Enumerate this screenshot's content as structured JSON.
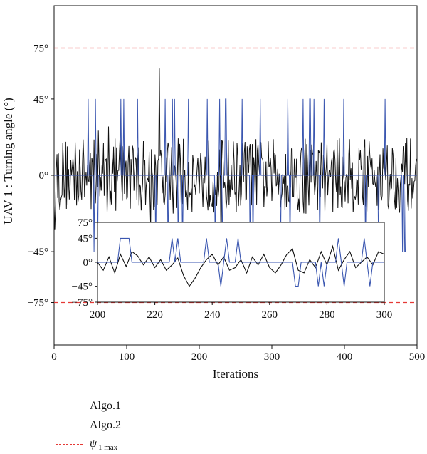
{
  "chart_data": [
    {
      "type": "line",
      "ylabel": "UAV 1 : Turning angle (°)",
      "xlabel": "Iterations",
      "xlim": [
        0,
        500
      ],
      "ylim": [
        -100,
        100
      ],
      "xticks": [
        0,
        100,
        200,
        300,
        400,
        500
      ],
      "yticks": [
        -75,
        -45,
        0,
        45,
        75
      ],
      "ytick_labels": [
        "−75°",
        "−45°",
        "0°",
        "45°",
        "75°"
      ],
      "reference_lines": {
        "name": "ψ1 max",
        "values": [
          75,
          -75
        ],
        "color": "#e53935",
        "style": "dashed"
      },
      "series": [
        {
          "name": "Algo.1",
          "color": "#111111",
          "style": "solid",
          "description": "noisy signal mostly within ±25°, peak ~63° near iteration 145, trough ~-48° near iteration 230"
        },
        {
          "name": "Algo.2",
          "color": "#3a56b0",
          "style": "solid",
          "description": "mostly 0° with intermittent spikes to +45° and -45°"
        }
      ]
    },
    {
      "type": "line",
      "inset": true,
      "xlim": [
        200,
        300
      ],
      "ylim": [
        -75,
        75
      ],
      "xticks": [
        200,
        220,
        240,
        260,
        280,
        300
      ],
      "yticks": [
        -75,
        -45,
        0,
        45,
        75
      ],
      "ytick_labels": [
        "−75°",
        "−45°",
        "0°",
        "45°",
        "75°"
      ],
      "series": [
        {
          "name": "Algo.1",
          "color": "#111111",
          "x": [
            200,
            202,
            204,
            206,
            208,
            210,
            212,
            214,
            216,
            218,
            220,
            222,
            224,
            226,
            228,
            230,
            232,
            234,
            236,
            238,
            240,
            242,
            244,
            246,
            248,
            250,
            252,
            254,
            256,
            258,
            260,
            262,
            264,
            266,
            268,
            270,
            272,
            274,
            276,
            278,
            280,
            282,
            284,
            286,
            288,
            290,
            292,
            294,
            296,
            298,
            300
          ],
          "y": [
            0,
            -15,
            10,
            -20,
            15,
            -8,
            20,
            12,
            -5,
            10,
            -10,
            5,
            -15,
            -5,
            8,
            -25,
            -45,
            -30,
            -10,
            5,
            15,
            -5,
            10,
            -15,
            -10,
            5,
            -20,
            10,
            -5,
            15,
            -10,
            -20,
            -5,
            15,
            25,
            -15,
            -20,
            5,
            -10,
            20,
            -5,
            30,
            -15,
            5,
            20,
            -10,
            0,
            10,
            -5,
            20,
            15
          ]
        },
        {
          "name": "Algo.2",
          "color": "#3a56b0",
          "x": [
            200,
            207,
            208,
            210,
            211,
            212,
            225,
            226,
            227,
            228,
            229,
            233,
            234,
            237,
            238,
            239,
            242,
            243,
            244,
            245,
            246,
            248,
            249,
            250,
            268,
            269,
            270,
            271,
            272,
            276,
            277,
            278,
            279,
            280,
            283,
            284,
            285,
            286,
            287,
            292,
            293,
            294,
            295,
            296,
            300
          ],
          "y": [
            0,
            0,
            45,
            45,
            45,
            0,
            0,
            45,
            0,
            45,
            0,
            0,
            0,
            0,
            45,
            0,
            0,
            -45,
            0,
            45,
            0,
            0,
            45,
            0,
            0,
            -45,
            -45,
            0,
            0,
            0,
            -45,
            0,
            -45,
            0,
            0,
            45,
            0,
            -45,
            0,
            0,
            45,
            0,
            -45,
            0,
            0
          ]
        }
      ]
    }
  ],
  "legend": {
    "algo1": "Algo.1",
    "algo2": "Algo.2",
    "psi_main": "ψ",
    "psi_sub": "1 max"
  }
}
